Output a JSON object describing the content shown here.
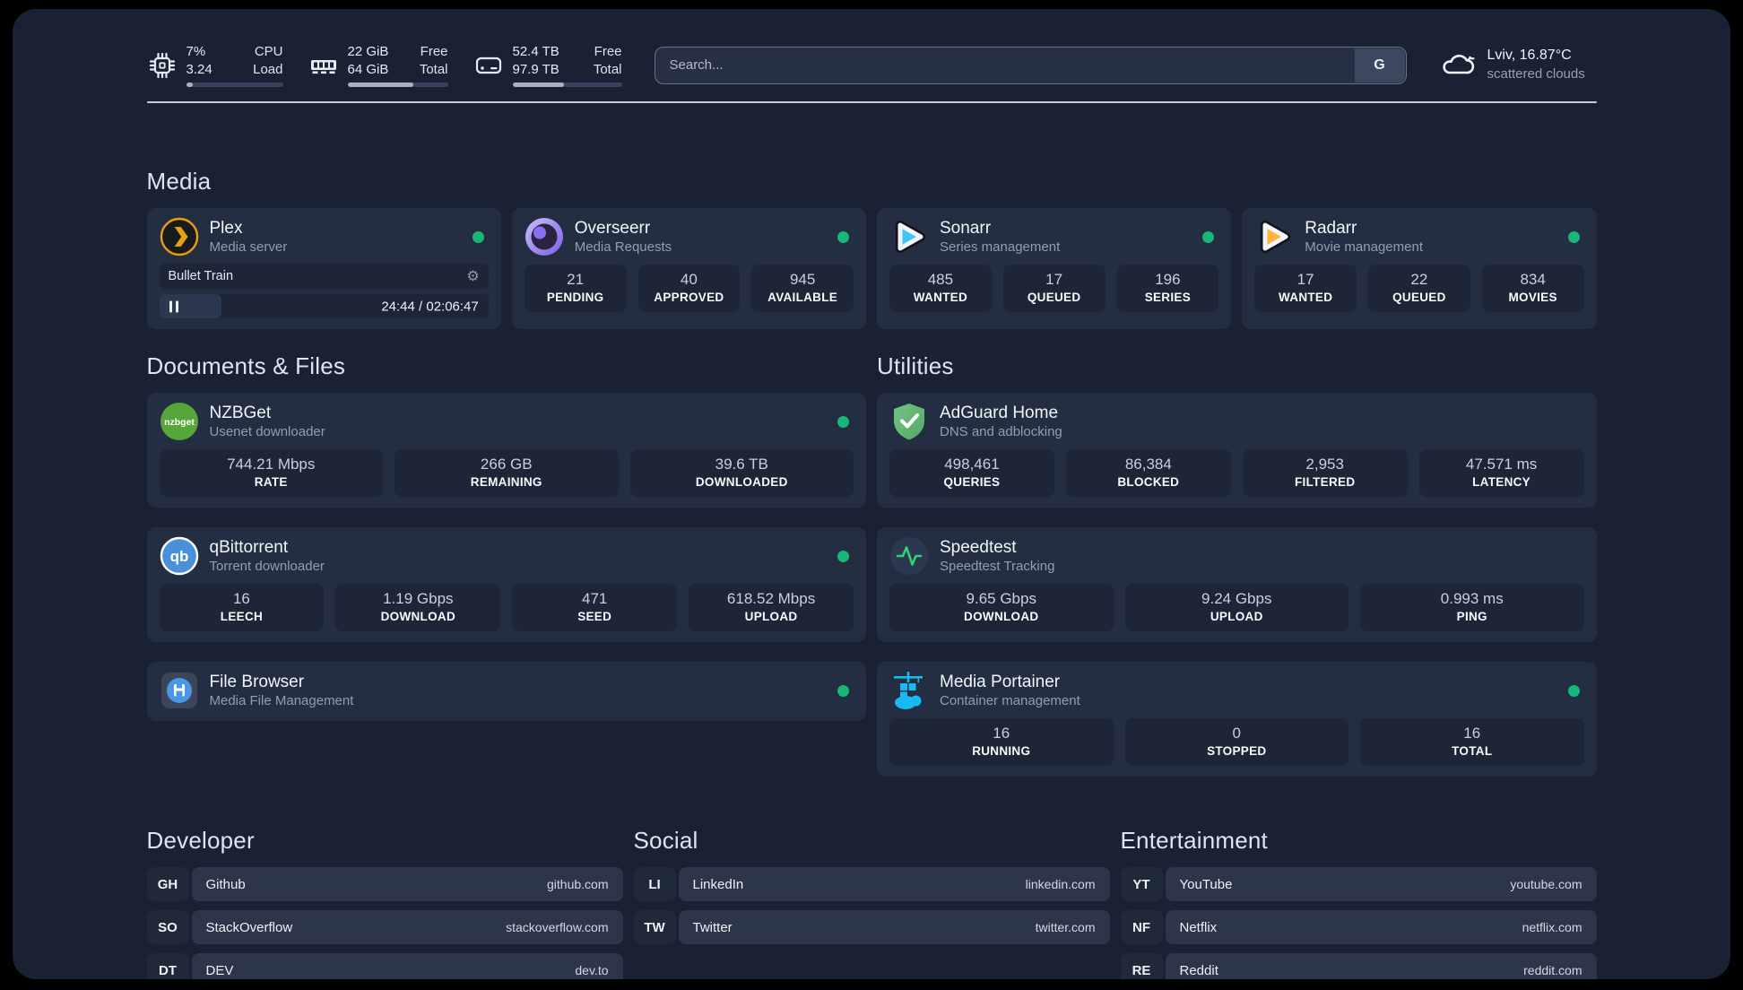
{
  "colors": {
    "panel_bg": "#1a2133",
    "card_bg": "#242e42",
    "stat_bg": "#1d2537",
    "status_online": "#17b877",
    "plex_gold": "#e5a00d",
    "sonarr_blue": "#3ec6f4",
    "radarr_orange": "#ffb43a",
    "nzbget_green": "#57a639",
    "qbittorrent_blue": "#4a90d9",
    "adguard_green": "#67b874",
    "speedtest_pulse": "#2ed573",
    "portainer_cyan": "#19b9f2"
  },
  "header": {
    "metrics": [
      {
        "icon": "cpu-icon",
        "values": [
          "7%",
          "3.24"
        ],
        "labels": [
          "CPU",
          "Load"
        ],
        "progress_pct": 7
      },
      {
        "icon": "ram-icon",
        "values": [
          "22 GiB",
          "64 GiB"
        ],
        "labels": [
          "Free",
          "Total"
        ],
        "progress_pct": 66
      },
      {
        "icon": "disk-icon",
        "values": [
          "52.4 TB",
          "97.9 TB"
        ],
        "labels": [
          "Free",
          "Total"
        ],
        "progress_pct": 47
      }
    ],
    "search": {
      "placeholder": "Search...",
      "engine_button": "G"
    },
    "weather": {
      "location": "Lviv, 16.87°C",
      "condition": "scattered clouds"
    }
  },
  "media": {
    "title": "Media",
    "apps": [
      {
        "name": "Plex",
        "desc": "Media server",
        "status": "online",
        "now_playing": {
          "title": "Bullet Train",
          "time": "24:44 / 02:06:47",
          "progress_pct": 19,
          "state": "paused"
        }
      },
      {
        "name": "Overseerr",
        "desc": "Media Requests",
        "status": "online",
        "stats": [
          {
            "value": "21",
            "label": "PENDING"
          },
          {
            "value": "40",
            "label": "APPROVED"
          },
          {
            "value": "945",
            "label": "AVAILABLE"
          }
        ]
      },
      {
        "name": "Sonarr",
        "desc": "Series management",
        "status": "online",
        "stats": [
          {
            "value": "485",
            "label": "WANTED"
          },
          {
            "value": "17",
            "label": "QUEUED"
          },
          {
            "value": "196",
            "label": "SERIES"
          }
        ]
      },
      {
        "name": "Radarr",
        "desc": "Movie management",
        "status": "online",
        "stats": [
          {
            "value": "17",
            "label": "WANTED"
          },
          {
            "value": "22",
            "label": "QUEUED"
          },
          {
            "value": "834",
            "label": "MOVIES"
          }
        ]
      }
    ]
  },
  "documents": {
    "title": "Documents & Files",
    "apps": [
      {
        "name": "NZBGet",
        "desc": "Usenet downloader",
        "status": "online",
        "stats": [
          {
            "value": "744.21 Mbps",
            "label": "RATE"
          },
          {
            "value": "266 GB",
            "label": "REMAINING"
          },
          {
            "value": "39.6 TB",
            "label": "DOWNLOADED"
          }
        ]
      },
      {
        "name": "qBittorrent",
        "desc": "Torrent downloader",
        "status": "online",
        "stats": [
          {
            "value": "16",
            "label": "LEECH"
          },
          {
            "value": "1.19 Gbps",
            "label": "DOWNLOAD"
          },
          {
            "value": "471",
            "label": "SEED"
          },
          {
            "value": "618.52 Mbps",
            "label": "UPLOAD"
          }
        ]
      },
      {
        "name": "File Browser",
        "desc": "Media File Management",
        "status": "online"
      }
    ]
  },
  "utilities": {
    "title": "Utilities",
    "apps": [
      {
        "name": "AdGuard Home",
        "desc": "DNS and adblocking",
        "stats": [
          {
            "value": "498,461",
            "label": "QUERIES"
          },
          {
            "value": "86,384",
            "label": "BLOCKED"
          },
          {
            "value": "2,953",
            "label": "FILTERED"
          },
          {
            "value": "47.571 ms",
            "label": "LATENCY"
          }
        ]
      },
      {
        "name": "Speedtest",
        "desc": "Speedtest Tracking",
        "stats": [
          {
            "value": "9.65 Gbps",
            "label": "DOWNLOAD"
          },
          {
            "value": "9.24 Gbps",
            "label": "UPLOAD"
          },
          {
            "value": "0.993 ms",
            "label": "PING"
          }
        ]
      },
      {
        "name": "Media Portainer",
        "desc": "Container management",
        "status": "online",
        "stats": [
          {
            "value": "16",
            "label": "RUNNING"
          },
          {
            "value": "0",
            "label": "STOPPED"
          },
          {
            "value": "16",
            "label": "TOTAL"
          }
        ]
      }
    ]
  },
  "link_sections": [
    {
      "title": "Developer",
      "items": [
        {
          "abbr": "GH",
          "name": "Github",
          "url": "github.com"
        },
        {
          "abbr": "SO",
          "name": "StackOverflow",
          "url": "stackoverflow.com"
        },
        {
          "abbr": "DT",
          "name": "DEV",
          "url": "dev.to"
        }
      ]
    },
    {
      "title": "Social",
      "items": [
        {
          "abbr": "LI",
          "name": "LinkedIn",
          "url": "linkedin.com"
        },
        {
          "abbr": "TW",
          "name": "Twitter",
          "url": "twitter.com"
        }
      ]
    },
    {
      "title": "Entertainment",
      "items": [
        {
          "abbr": "YT",
          "name": "YouTube",
          "url": "youtube.com"
        },
        {
          "abbr": "NF",
          "name": "Netflix",
          "url": "netflix.com"
        },
        {
          "abbr": "RE",
          "name": "Reddit",
          "url": "reddit.com"
        }
      ]
    }
  ]
}
